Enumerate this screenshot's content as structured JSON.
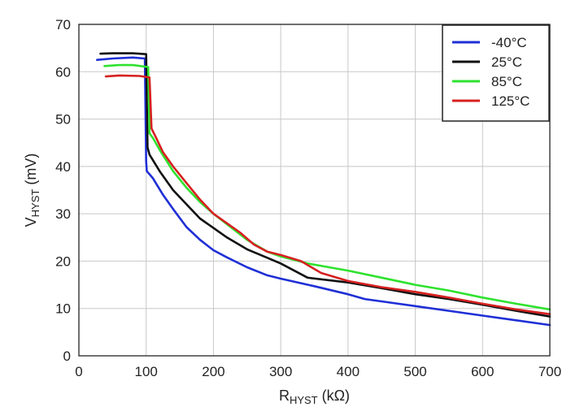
{
  "chart_data": {
    "type": "line",
    "title": "",
    "xlabel": {
      "main": "R",
      "sub": "HYST",
      "unit": " (kΩ)"
    },
    "ylabel": {
      "main": "V",
      "sub": "HYST",
      "unit": " (mV)"
    },
    "xlim": [
      0,
      700
    ],
    "ylim": [
      0,
      70
    ],
    "xticks": [
      "0",
      "100",
      "200",
      "300",
      "400",
      "500",
      "600",
      "700"
    ],
    "yticks": [
      "0",
      "10",
      "20",
      "30",
      "40",
      "50",
      "60",
      "70"
    ],
    "grid": true,
    "legend_position": "top-right",
    "series": [
      {
        "name": "-40°C",
        "color": "#1f2fd6",
        "points": [
          [
            27,
            62.5
          ],
          [
            50,
            62.8
          ],
          [
            80,
            63.0
          ],
          [
            98,
            62.8
          ],
          [
            100,
            41
          ],
          [
            101,
            39
          ],
          [
            110,
            37.5
          ],
          [
            125,
            34
          ],
          [
            140,
            31
          ],
          [
            160,
            27.2
          ],
          [
            180,
            24.5
          ],
          [
            200,
            22.3
          ],
          [
            220,
            20.8
          ],
          [
            250,
            18.7
          ],
          [
            280,
            17
          ],
          [
            300,
            16.3
          ],
          [
            350,
            14.7
          ],
          [
            400,
            13
          ],
          [
            425,
            12
          ],
          [
            450,
            11.5
          ],
          [
            500,
            10.5
          ],
          [
            550,
            9.5
          ],
          [
            600,
            8.5
          ],
          [
            650,
            7.5
          ],
          [
            700,
            6.5
          ]
        ]
      },
      {
        "name": "25°C",
        "color": "#111111",
        "points": [
          [
            32,
            63.8
          ],
          [
            50,
            63.9
          ],
          [
            80,
            63.9
          ],
          [
            100,
            63.7
          ],
          [
            102,
            44
          ],
          [
            105,
            42.5
          ],
          [
            120,
            39
          ],
          [
            140,
            35
          ],
          [
            160,
            32
          ],
          [
            180,
            29
          ],
          [
            200,
            27
          ],
          [
            220,
            25
          ],
          [
            250,
            22.5
          ],
          [
            280,
            20.7
          ],
          [
            300,
            19.5
          ],
          [
            340,
            16.5
          ],
          [
            400,
            15.5
          ],
          [
            450,
            14.3
          ],
          [
            500,
            13
          ],
          [
            550,
            12
          ],
          [
            600,
            10.8
          ],
          [
            650,
            9.5
          ],
          [
            700,
            8.3
          ]
        ]
      },
      {
        "name": "85°C",
        "color": "#2ee22e",
        "points": [
          [
            38,
            61.2
          ],
          [
            60,
            61.4
          ],
          [
            80,
            61.4
          ],
          [
            103,
            61.0
          ],
          [
            105,
            47
          ],
          [
            110,
            46
          ],
          [
            120,
            43.5
          ],
          [
            140,
            39
          ],
          [
            160,
            35.5
          ],
          [
            180,
            32.5
          ],
          [
            200,
            30
          ],
          [
            220,
            27.8
          ],
          [
            250,
            24.5
          ],
          [
            280,
            22
          ],
          [
            300,
            21
          ],
          [
            340,
            19.5
          ],
          [
            400,
            18
          ],
          [
            450,
            16.5
          ],
          [
            500,
            15
          ],
          [
            550,
            13.8
          ],
          [
            600,
            12.3
          ],
          [
            650,
            11
          ],
          [
            700,
            9.8
          ]
        ]
      },
      {
        "name": "125°C",
        "color": "#d62020",
        "points": [
          [
            40,
            59.0
          ],
          [
            60,
            59.2
          ],
          [
            90,
            59.1
          ],
          [
            105,
            58.8
          ],
          [
            108,
            48
          ],
          [
            115,
            46
          ],
          [
            125,
            43
          ],
          [
            140,
            40
          ],
          [
            160,
            36.5
          ],
          [
            180,
            33
          ],
          [
            200,
            30
          ],
          [
            220,
            28
          ],
          [
            240,
            26
          ],
          [
            260,
            23.5
          ],
          [
            280,
            22
          ],
          [
            300,
            21.3
          ],
          [
            330,
            20
          ],
          [
            360,
            17.5
          ],
          [
            400,
            15.8
          ],
          [
            450,
            14.5
          ],
          [
            500,
            13.5
          ],
          [
            550,
            12.3
          ],
          [
            600,
            11
          ],
          [
            650,
            9.8
          ],
          [
            700,
            8.8
          ]
        ]
      }
    ]
  }
}
